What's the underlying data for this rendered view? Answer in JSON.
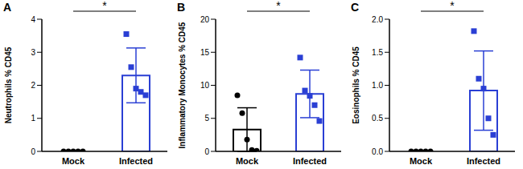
{
  "chart_data": [
    {
      "type": "bar",
      "title": "A",
      "y_label": "Neutrophils % CD45",
      "categories": [
        "Mock",
        "Infected"
      ],
      "values": [
        0,
        2.3
      ],
      "errors": [
        0,
        0.83
      ],
      "points": [
        [
          0,
          0,
          0,
          0,
          0
        ],
        [
          3.55,
          2.55,
          1.9,
          1.8,
          1.7
        ]
      ],
      "colors": [
        "#000000",
        "#2a3fd4"
      ],
      "ylim": [
        0,
        4
      ],
      "yticks": [
        0,
        1,
        2,
        3,
        4
      ],
      "annotation": "*"
    },
    {
      "type": "bar",
      "title": "B",
      "y_label": "Inflammatory Monocytes % CD45",
      "categories": [
        "Mock",
        "Infected"
      ],
      "values": [
        3.3,
        8.7
      ],
      "errors": [
        3.3,
        3.6
      ],
      "points": [
        [
          8.5,
          5.8,
          1.8,
          0.2,
          0.1
        ],
        [
          14.2,
          9.2,
          8.4,
          7.0,
          4.6
        ]
      ],
      "colors": [
        "#000000",
        "#2a3fd4"
      ],
      "ylim": [
        0,
        20
      ],
      "yticks": [
        0,
        5,
        10,
        15,
        20
      ],
      "annotation": "*"
    },
    {
      "type": "bar",
      "title": "C",
      "y_label": "Eosinophils % CD45",
      "categories": [
        "Mock",
        "Infected"
      ],
      "values": [
        0,
        0.92
      ],
      "errors": [
        0,
        0.6
      ],
      "points": [
        [
          0,
          0,
          0,
          0,
          0
        ],
        [
          1.82,
          1.1,
          0.95,
          0.5,
          0.25
        ]
      ],
      "colors": [
        "#000000",
        "#2a3fd4"
      ],
      "ylim": [
        0,
        2
      ],
      "yticks": [
        {
          "value": 0,
          "label": "0.0"
        },
        {
          "value": 0.5,
          "label": "0.5"
        },
        {
          "value": 1,
          "label": "1.0"
        },
        {
          "value": 1.5,
          "label": "1.5"
        },
        {
          "value": 2,
          "label": "2.0"
        }
      ],
      "annotation": "*"
    }
  ]
}
